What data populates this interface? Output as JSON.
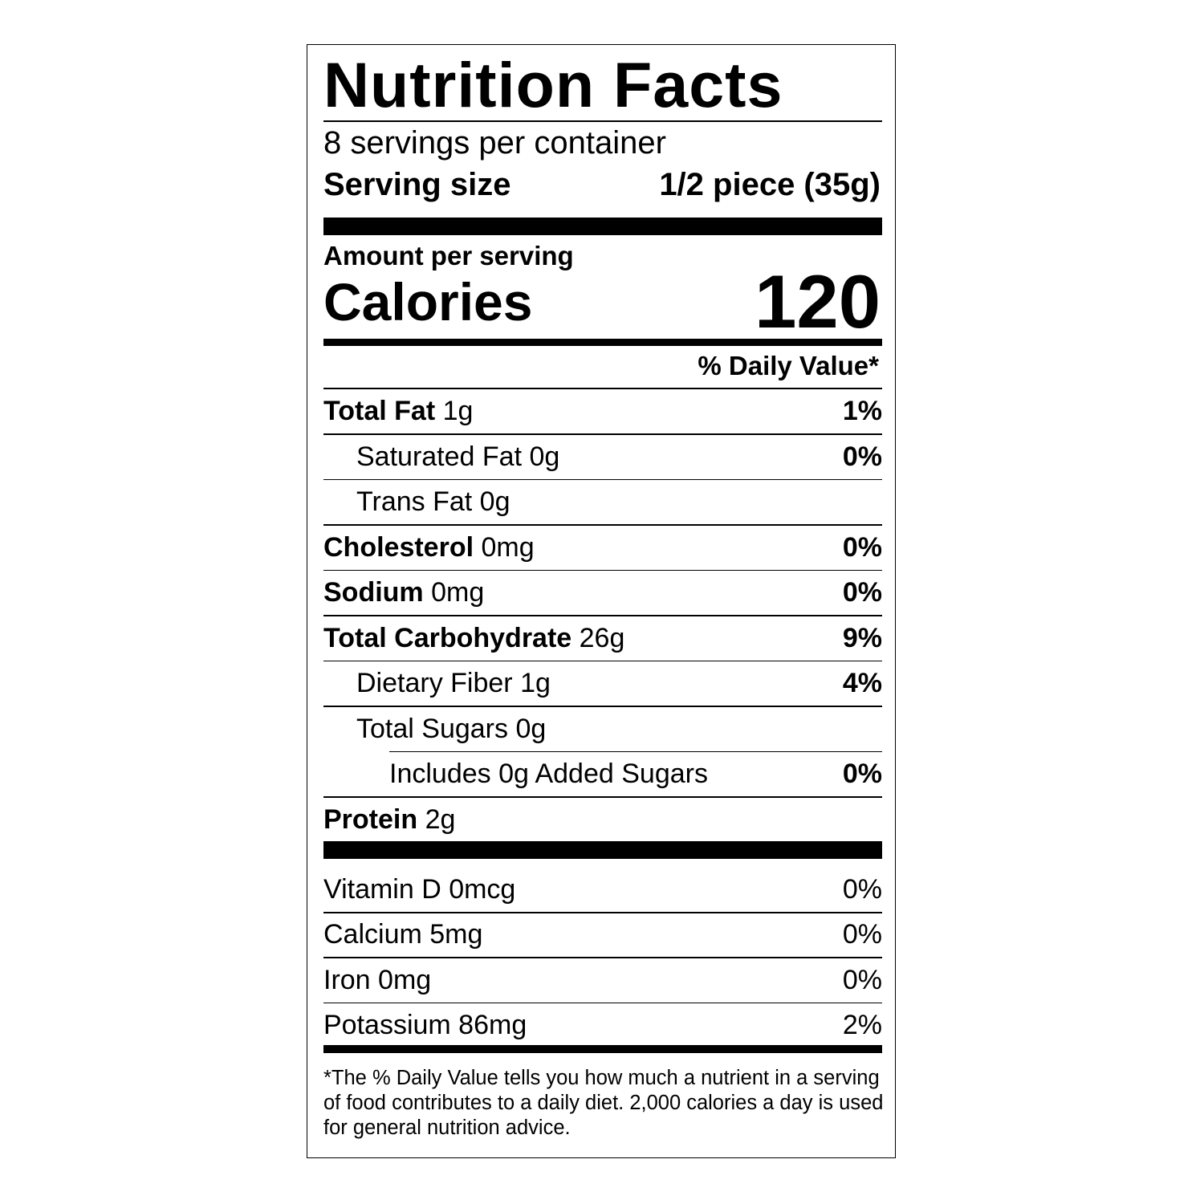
{
  "title": "Nutrition Facts",
  "servings_per_container": "8 servings per container",
  "serving_size_label": "Serving size",
  "serving_size_value": "1/2 piece (35g)",
  "amount_per_serving": "Amount per serving",
  "calories_label": "Calories",
  "calories_value": "120",
  "daily_value_header": "% Daily Value*",
  "nutrients": [
    {
      "name": "Total Fat",
      "amount": "1g",
      "dv": "1%"
    },
    {
      "name": "Saturated Fat",
      "amount": "0g",
      "dv": "0%"
    },
    {
      "name": "Trans Fat",
      "amount": "0g",
      "dv": ""
    },
    {
      "name": "Cholesterol",
      "amount": "0mg",
      "dv": "0%"
    },
    {
      "name": "Sodium",
      "amount": "0mg",
      "dv": "0%"
    },
    {
      "name": "Total Carbohydrate",
      "amount": "26g",
      "dv": "9%"
    },
    {
      "name": "Dietary Fiber",
      "amount": "1g",
      "dv": "4%"
    },
    {
      "name": "Total Sugars",
      "amount": "0g",
      "dv": ""
    },
    {
      "name": "Includes 0g Added Sugars",
      "amount": "",
      "dv": "0%"
    },
    {
      "name": "Protein",
      "amount": "2g",
      "dv": ""
    }
  ],
  "vitamins": [
    {
      "name": "Vitamin D 0mcg",
      "dv": "0%"
    },
    {
      "name": "Calcium 5mg",
      "dv": "0%"
    },
    {
      "name": "Iron 0mg",
      "dv": "0%"
    },
    {
      "name": "Potassium 86mg",
      "dv": "2%"
    }
  ],
  "footnote": "*The % Daily Value tells you how much a nutrient in a serving of food contributes to a daily diet. 2,000 calories a day is used for general nutrition advice."
}
